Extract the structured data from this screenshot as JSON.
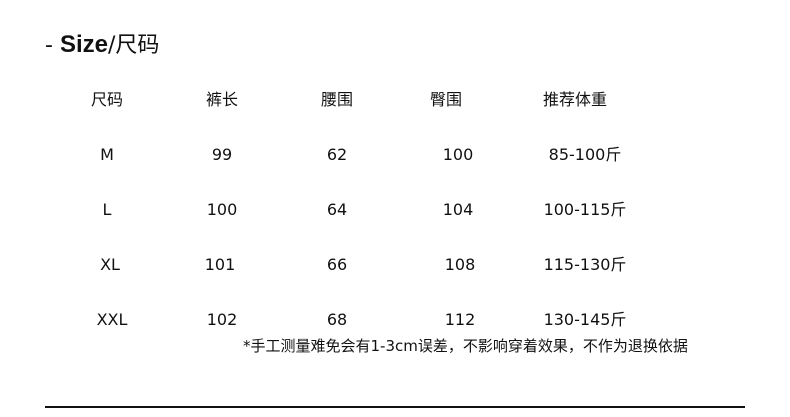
{
  "title": {
    "prefix": "- ",
    "en": "Size",
    "cn": "/尺码"
  },
  "table": {
    "headers": [
      "尺码",
      "裤长",
      "腰围",
      "臀围",
      "推荐体重"
    ],
    "rows": [
      [
        "M",
        "99",
        "62",
        "100",
        "85-100斤"
      ],
      [
        "L",
        "100",
        "64",
        "104",
        "100-115斤"
      ],
      [
        "XL",
        "101",
        "66",
        "108",
        "115-130斤"
      ],
      [
        "XXL",
        "102",
        "68",
        "112",
        "130-145斤"
      ]
    ]
  },
  "note": "*手工测量难免会有1-3cm误差，不影响穿着效果，不作为退换依据"
}
